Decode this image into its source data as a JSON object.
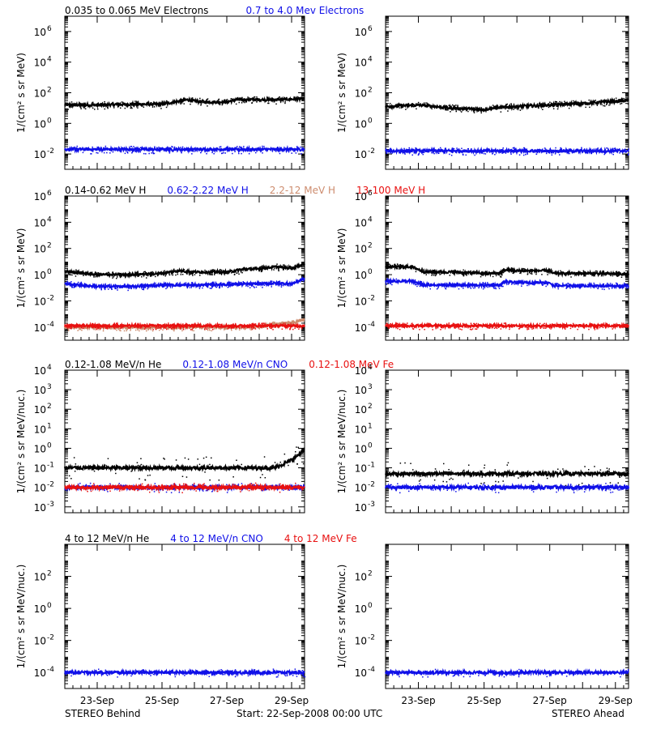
{
  "colors": {
    "black": "#000000",
    "blue": "#1010e8",
    "tan": "#cd8c6e",
    "red": "#e81010"
  },
  "footer": {
    "left": "STEREO Behind",
    "center": "Start: 22-Sep-2008 00:00 UTC",
    "right": "STEREO Ahead"
  },
  "chart_data": [
    {
      "type": "scatter",
      "panel_row": 1,
      "legend": [
        {
          "text": "0.035 to 0.065 MeV Electrons",
          "color": "black"
        },
        {
          "text": "0.7 to 4.0 Mev Electrons",
          "color": "blue"
        }
      ],
      "ylabel": "1/(cm² s sr MeV)",
      "ylim_exp": [
        -3,
        7
      ],
      "y_ticks": [
        {
          "exp": 6,
          "label": "10",
          "sup": "6"
        },
        {
          "exp": 4,
          "label": "10",
          "sup": "4"
        },
        {
          "exp": 2,
          "label": "10",
          "sup": "2"
        },
        {
          "exp": 0,
          "label": "10",
          "sup": "0"
        },
        {
          "exp": -2,
          "label": "10",
          "sup": "-2"
        }
      ],
      "scale": "log",
      "x_range_days": [
        22,
        29.4
      ],
      "series": [
        {
          "color": "black",
          "side": "left",
          "points": [
            [
              22,
              1.2
            ],
            [
              23,
              1.2
            ],
            [
              24,
              1.25
            ],
            [
              25,
              1.25
            ],
            [
              25.8,
              1.55
            ],
            [
              26,
              1.45
            ],
            [
              26.5,
              1.4
            ],
            [
              27,
              1.4
            ],
            [
              27.3,
              1.55
            ],
            [
              28,
              1.55
            ],
            [
              28.5,
              1.55
            ],
            [
              29.4,
              1.6
            ]
          ]
        },
        {
          "color": "blue",
          "side": "left",
          "points": [
            [
              22,
              -1.7
            ],
            [
              29.4,
              -1.7
            ]
          ]
        },
        {
          "color": "black",
          "side": "right",
          "points": [
            [
              22,
              1.1
            ],
            [
              23,
              1.2
            ],
            [
              24,
              1.0
            ],
            [
              25,
              0.9
            ],
            [
              25.3,
              1.0
            ],
            [
              26,
              1.1
            ],
            [
              27,
              1.2
            ],
            [
              28,
              1.3
            ],
            [
              29.4,
              1.5
            ]
          ]
        },
        {
          "color": "blue",
          "side": "right",
          "points": [
            [
              22,
              -1.8
            ],
            [
              29.4,
              -1.8
            ]
          ]
        }
      ]
    },
    {
      "type": "scatter",
      "panel_row": 2,
      "legend": [
        {
          "text": "0.14-0.62 MeV H",
          "color": "black"
        },
        {
          "text": "0.62-2.22 MeV H",
          "color": "blue"
        },
        {
          "text": "2.2-12 MeV H",
          "color": "tan"
        },
        {
          "text": "13-100 MeV H",
          "color": "red"
        }
      ],
      "ylabel": "1/(cm² s sr MeV)",
      "ylim_exp": [
        -5,
        6
      ],
      "y_ticks": [
        {
          "exp": 6,
          "label": "10",
          "sup": "6"
        },
        {
          "exp": 4,
          "label": "10",
          "sup": "4"
        },
        {
          "exp": 2,
          "label": "10",
          "sup": "2"
        },
        {
          "exp": 0,
          "label": "10",
          "sup": "0"
        },
        {
          "exp": -2,
          "label": "10",
          "sup": "-2"
        },
        {
          "exp": -4,
          "label": "10",
          "sup": "-4"
        }
      ],
      "scale": "log",
      "x_range_days": [
        22,
        29.4
      ],
      "series": [
        {
          "color": "black",
          "side": "left",
          "points": [
            [
              22,
              0.25
            ],
            [
              23,
              0.0
            ],
            [
              24,
              0.0
            ],
            [
              25,
              0.1
            ],
            [
              25.5,
              0.3
            ],
            [
              26,
              0.2
            ],
            [
              27,
              0.2
            ],
            [
              27.5,
              0.4
            ],
            [
              28,
              0.45
            ],
            [
              28.5,
              0.6
            ],
            [
              29,
              0.5
            ],
            [
              29.4,
              0.8
            ]
          ]
        },
        {
          "color": "blue",
          "side": "left",
          "points": [
            [
              22,
              -0.7
            ],
            [
              23,
              -0.9
            ],
            [
              24,
              -0.9
            ],
            [
              25,
              -0.8
            ],
            [
              26,
              -0.8
            ],
            [
              27,
              -0.75
            ],
            [
              28,
              -0.7
            ],
            [
              28.5,
              -0.65
            ],
            [
              29,
              -0.7
            ],
            [
              29.4,
              -0.3
            ]
          ]
        },
        {
          "color": "tan",
          "side": "left",
          "points": [
            [
              22,
              -4.0
            ],
            [
              28,
              -4.0
            ],
            [
              28.4,
              -3.8
            ],
            [
              29,
              -3.7
            ],
            [
              29.4,
              -3.4
            ]
          ]
        },
        {
          "color": "red",
          "side": "left",
          "points": [
            [
              22,
              -3.9
            ],
            [
              29.4,
              -3.9
            ]
          ]
        },
        {
          "color": "black",
          "side": "right",
          "points": [
            [
              22,
              0.6
            ],
            [
              22.8,
              0.6
            ],
            [
              23.2,
              0.2
            ],
            [
              24,
              0.2
            ],
            [
              25,
              0.1
            ],
            [
              25.5,
              0.1
            ],
            [
              25.6,
              0.35
            ],
            [
              26,
              0.3
            ],
            [
              27,
              0.3
            ],
            [
              27.1,
              0.1
            ],
            [
              28,
              0.1
            ],
            [
              29.4,
              0.05
            ]
          ]
        },
        {
          "color": "blue",
          "side": "right",
          "points": [
            [
              22,
              -0.5
            ],
            [
              22.8,
              -0.5
            ],
            [
              23.2,
              -0.8
            ],
            [
              24,
              -0.8
            ],
            [
              25,
              -0.8
            ],
            [
              25.5,
              -0.8
            ],
            [
              25.6,
              -0.55
            ],
            [
              26,
              -0.6
            ],
            [
              27,
              -0.6
            ],
            [
              27.1,
              -0.85
            ],
            [
              28,
              -0.85
            ],
            [
              29.4,
              -0.85
            ]
          ]
        },
        {
          "color": "red",
          "side": "right",
          "points": [
            [
              22,
              -3.9
            ],
            [
              29.4,
              -3.9
            ]
          ]
        }
      ]
    },
    {
      "type": "scatter",
      "panel_row": 3,
      "legend": [
        {
          "text": "0.12-1.08 MeV/n He",
          "color": "black"
        },
        {
          "text": "0.12-1.08 MeV/n CNO",
          "color": "blue"
        },
        {
          "text": "0.12-1.08 MeV Fe",
          "color": "red"
        }
      ],
      "ylabel": "1/(cm² s sr MeV/nuc.)",
      "ylim_exp": [
        -3.3,
        4
      ],
      "y_ticks": [
        {
          "exp": 4,
          "label": "10",
          "sup": "4"
        },
        {
          "exp": 3,
          "label": "10",
          "sup": "3"
        },
        {
          "exp": 2,
          "label": "10",
          "sup": "2"
        },
        {
          "exp": 1,
          "label": "10",
          "sup": "1"
        },
        {
          "exp": 0,
          "label": "10",
          "sup": "0"
        },
        {
          "exp": -1,
          "label": "10",
          "sup": "-1"
        },
        {
          "exp": -2,
          "label": "10",
          "sup": "-2"
        },
        {
          "exp": -3,
          "label": "10",
          "sup": "-3"
        }
      ],
      "scale": "log",
      "x_range_days": [
        22,
        29.4
      ],
      "series": [
        {
          "color": "black",
          "side": "left",
          "points": [
            [
              22,
              -1.0
            ],
            [
              28.5,
              -1.0
            ],
            [
              29,
              -0.6
            ],
            [
              29.4,
              -0.1
            ]
          ]
        },
        {
          "color": "blue",
          "side": "left",
          "points": [
            [
              22,
              -2.0
            ],
            [
              29.4,
              -2.0
            ]
          ]
        },
        {
          "color": "red",
          "side": "left",
          "points": [
            [
              22,
              -2.0
            ],
            [
              29.4,
              -2.0
            ]
          ]
        },
        {
          "color": "black",
          "side": "right",
          "points": [
            [
              22,
              -1.3
            ],
            [
              29.4,
              -1.3
            ]
          ]
        },
        {
          "color": "blue",
          "side": "right",
          "points": [
            [
              22,
              -2.0
            ],
            [
              29.4,
              -2.0
            ]
          ]
        }
      ]
    },
    {
      "type": "scatter",
      "panel_row": 4,
      "legend": [
        {
          "text": "4 to 12 MeV/n He",
          "color": "black"
        },
        {
          "text": "4 to 12 MeV/n CNO",
          "color": "blue"
        },
        {
          "text": "4 to 12 MeV Fe",
          "color": "red"
        }
      ],
      "ylabel": "1/(cm² s sr MeV/nuc.)",
      "ylim_exp": [
        -5,
        4
      ],
      "y_ticks": [
        {
          "exp": 2,
          "label": "10",
          "sup": "2"
        },
        {
          "exp": 0,
          "label": "10",
          "sup": "0"
        },
        {
          "exp": -2,
          "label": "10",
          "sup": "-2"
        },
        {
          "exp": -4,
          "label": "10",
          "sup": "-4"
        }
      ],
      "scale": "log",
      "x_range_days": [
        22,
        29.4
      ],
      "series": [
        {
          "color": "blue",
          "side": "left",
          "points": [
            [
              22,
              -4.0
            ],
            [
              29.4,
              -4.0
            ]
          ]
        },
        {
          "color": "blue",
          "side": "right",
          "points": [
            [
              22,
              -4.0
            ],
            [
              29.4,
              -4.0
            ]
          ]
        }
      ]
    }
  ],
  "x_ticks": [
    {
      "day": 23,
      "label": "23-Sep"
    },
    {
      "day": 25,
      "label": "25-Sep"
    },
    {
      "day": 27,
      "label": "27-Sep"
    },
    {
      "day": 29,
      "label": "29-Sep"
    }
  ]
}
